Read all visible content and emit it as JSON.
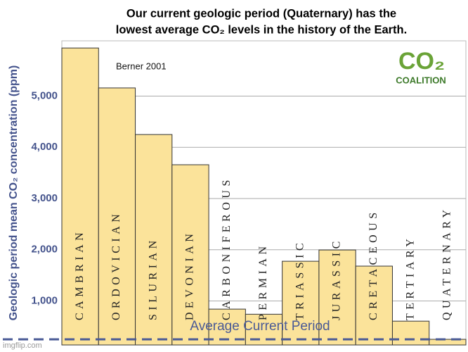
{
  "chart_data": {
    "type": "bar",
    "title_lines": [
      "Our current geologic period (Quaternary) has the",
      "lowest average CO₂ levels in the history of the Earth."
    ],
    "y_label": "Geologic period mean CO₂ concentration (ppm)",
    "source": "Berner 2001",
    "logo": {
      "mark": "CO₂",
      "name": "COALITION"
    },
    "watermark": "imgflip.com",
    "categories": [
      "CAMBRIAN",
      "ORDOVICIAN",
      "SILURIAN",
      "DEVONIAN",
      "CARBONIFEROUS",
      "PERMIAN",
      "TRIASSIC",
      "JURASSIC",
      "CRETACEOUS",
      "TERTIARY",
      "QUATERNARY"
    ],
    "values": [
      5940,
      5160,
      4250,
      3660,
      840,
      740,
      1775,
      1995,
      1680,
      605,
      250
    ],
    "color": "#fbe39a",
    "reference_line": {
      "value": 250,
      "label": "Average Current Period",
      "color": "#4a5a96"
    },
    "ylim": [
      140,
      6080
    ],
    "yticks": [
      {
        "value": 1000,
        "label": "1,000"
      },
      {
        "value": 2000,
        "label": "2,000"
      },
      {
        "value": 3000,
        "label": "3,000"
      },
      {
        "value": 4000,
        "label": "4,000"
      },
      {
        "value": 5000,
        "label": "5,000"
      }
    ],
    "grid": true
  }
}
